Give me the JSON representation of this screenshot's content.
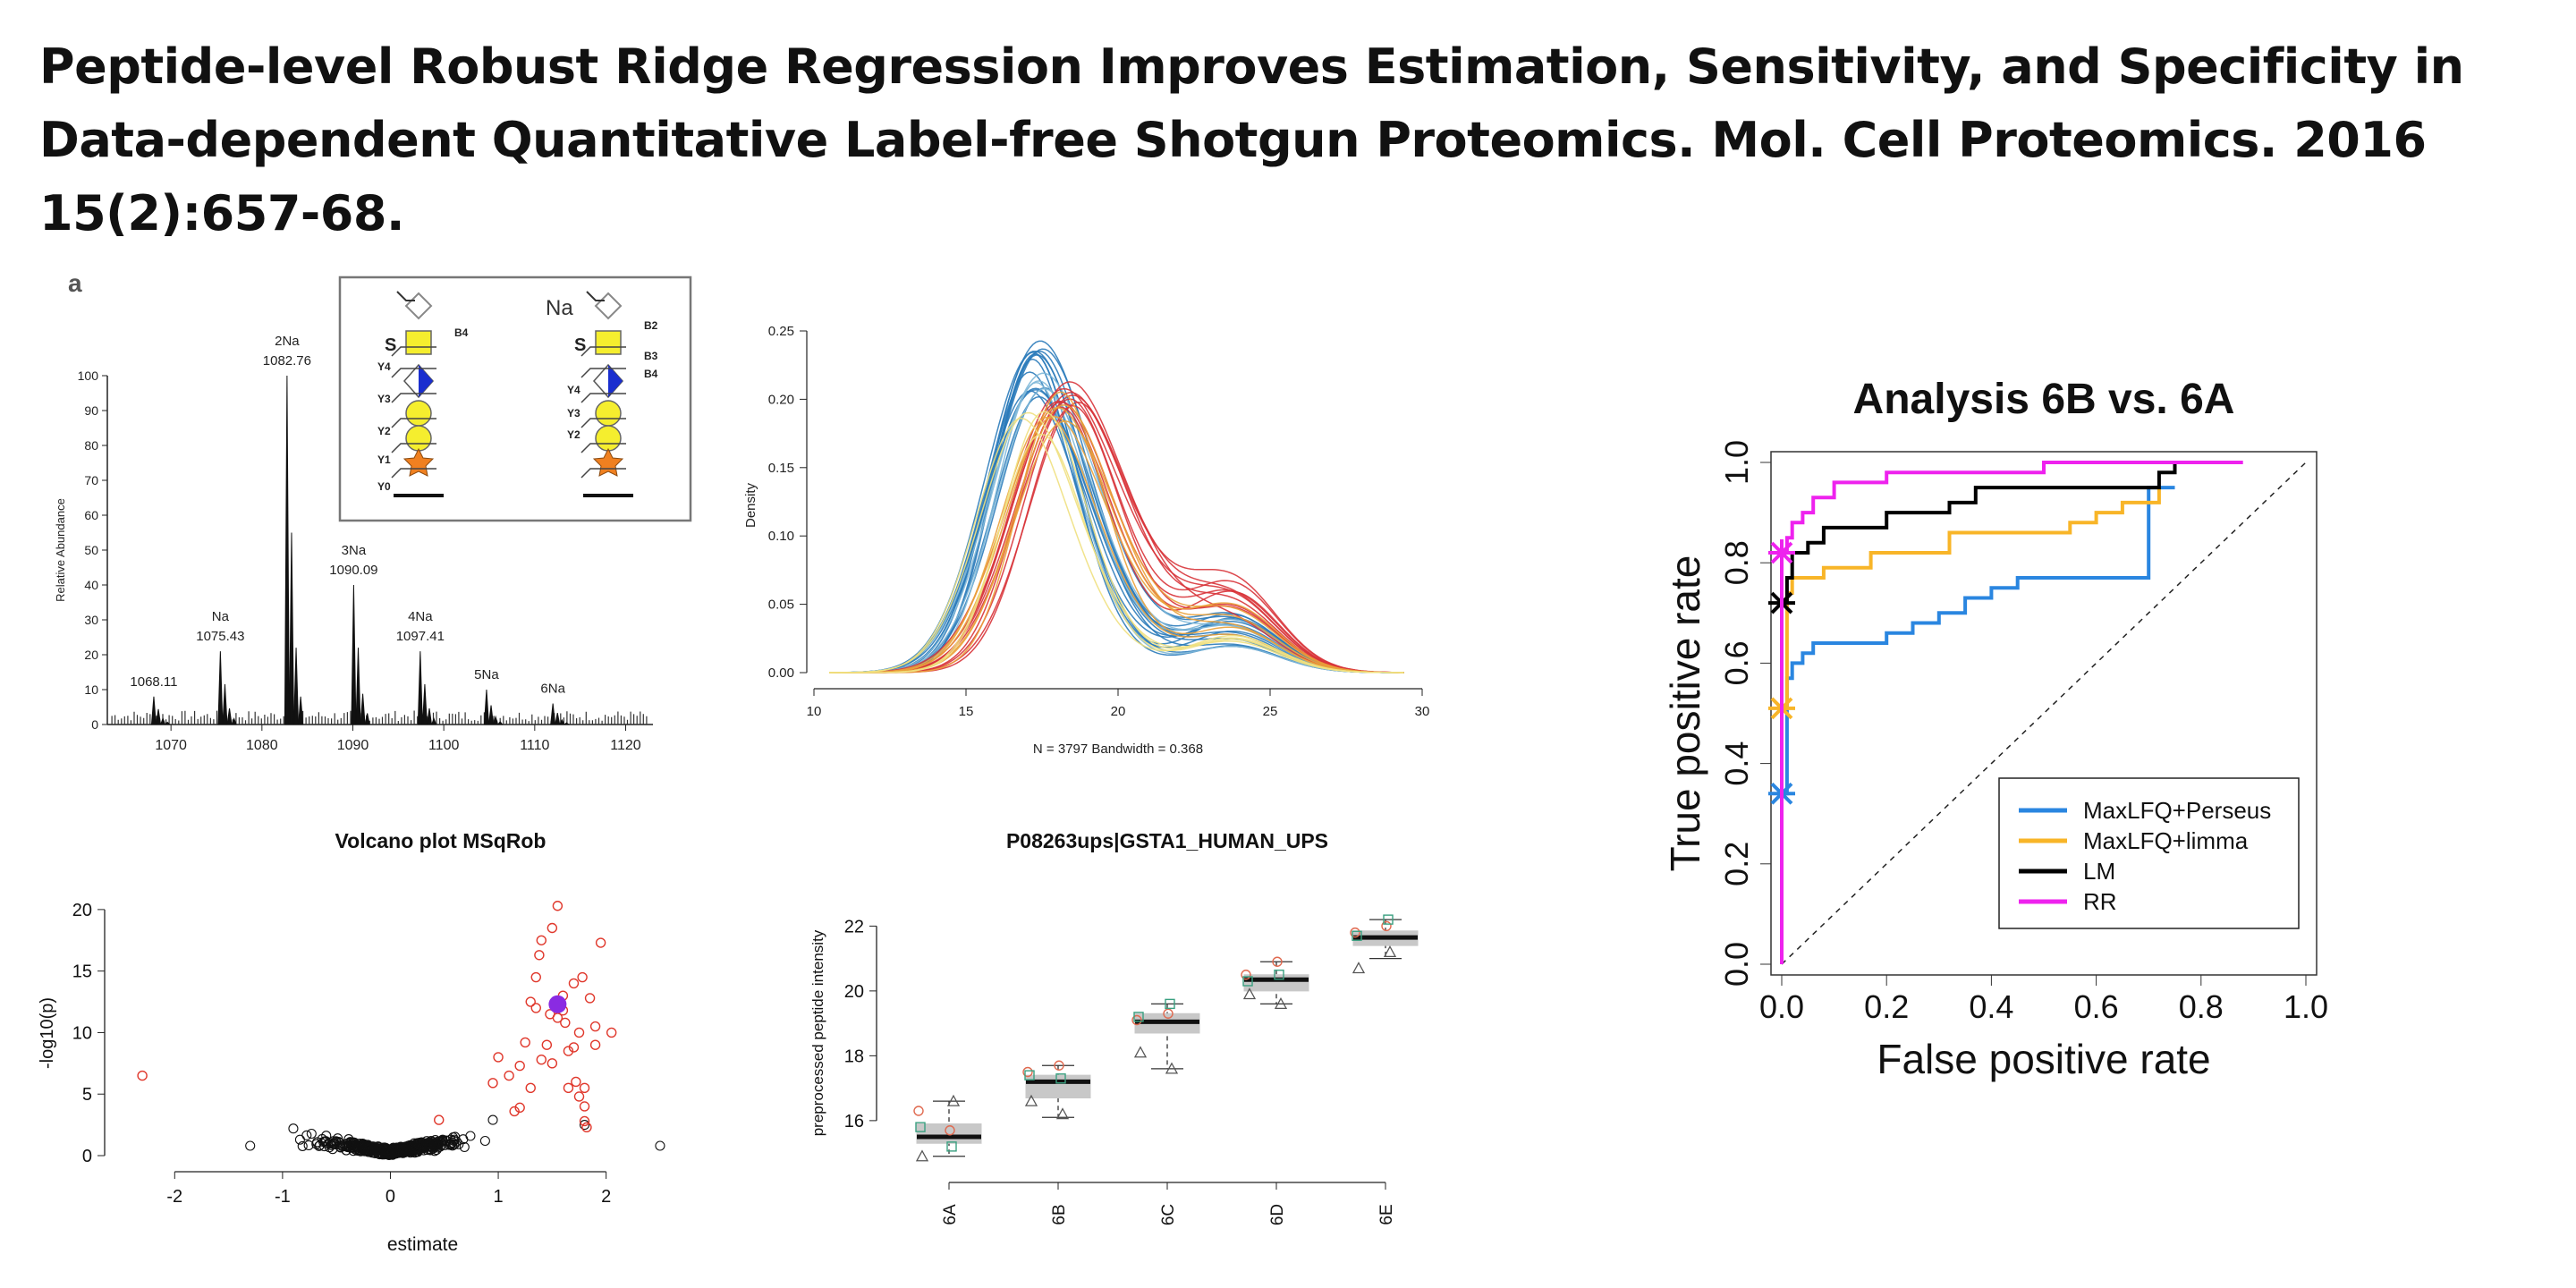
{
  "slide": {
    "title": "Peptide-level Robust Ridge Regression Improves Estimation, Sensitivity, and Specificity in Data-dependent Quantitative Label-free Shotgun Proteomics. Mol. Cell Proteomics. 2016 15(2):657-68."
  },
  "chart_data": [
    {
      "id": "mass-spectrum",
      "type": "bar",
      "panel_label": "a",
      "ylabel": "Relative Abundance",
      "xlim": [
        1063,
        1123
      ],
      "ylim": [
        0,
        100
      ],
      "xticks": [
        1070,
        1080,
        1090,
        1100,
        1110,
        1120
      ],
      "yticks": [
        0,
        10,
        20,
        30,
        40,
        50,
        60,
        70,
        80,
        90,
        100
      ],
      "peaks": [
        {
          "x": 1068.11,
          "y": 8,
          "label": "1068.11"
        },
        {
          "x": 1075.43,
          "y": 21,
          "label": "1075.43",
          "ion": "Na"
        },
        {
          "x": 1082.76,
          "y": 100,
          "label": "1082.76",
          "ion": "2Na"
        },
        {
          "x": 1090.09,
          "y": 40,
          "label": "1090.09",
          "ion": "3Na"
        },
        {
          "x": 1097.41,
          "y": 21,
          "label": "1097.41",
          "ion": "4Na"
        },
        {
          "x": 1104.7,
          "y": 10,
          "ion": "5Na"
        },
        {
          "x": 1112.0,
          "y": 6,
          "ion": "6Na"
        }
      ],
      "inset": {
        "left_ions": [
          "B4",
          "Y4",
          "Y3",
          "Y2",
          "Y1",
          "Y0"
        ],
        "right_prefix": "Na",
        "right_ions": [
          "B2",
          "B3",
          "B4",
          "Y4",
          "Y3",
          "Y2"
        ],
        "residue_letter": "S"
      }
    },
    {
      "id": "density",
      "type": "line",
      "ylabel": "Density",
      "xlim": [
        10,
        30
      ],
      "ylim": [
        0,
        0.25
      ],
      "xticks": [
        10,
        15,
        20,
        25,
        30
      ],
      "yticks": [
        0.0,
        0.05,
        0.1,
        0.15,
        0.2,
        0.25
      ],
      "xtick_labels": [
        "10",
        "15",
        "20",
        "25",
        "30"
      ],
      "ytick_labels": [
        "0.00",
        "0.05",
        "0.10",
        "0.15",
        "0.20",
        "0.25"
      ],
      "caption": "N = 3797   Bandwidth = 0.368",
      "curve_groups": [
        {
          "color": "#2b7bba",
          "count": 14,
          "mode_range": [
            17.0,
            17.6
          ],
          "peak_range": [
            0.2,
            0.245
          ],
          "sd": 1.45,
          "shoulder": 0.03
        },
        {
          "color": "#7fb8d8",
          "count": 4,
          "mode_range": [
            17.2,
            17.8
          ],
          "peak_range": [
            0.2,
            0.225
          ],
          "sd": 1.5,
          "shoulder": 0.03
        },
        {
          "color": "#d8343a",
          "count": 10,
          "mode_range": [
            18.0,
            18.9
          ],
          "peak_range": [
            0.19,
            0.217
          ],
          "sd": 1.6,
          "shoulder": 0.045
        },
        {
          "color": "#eaa13a",
          "count": 6,
          "mode_range": [
            17.6,
            18.4
          ],
          "peak_range": [
            0.18,
            0.215
          ],
          "sd": 1.5,
          "shoulder": 0.035
        },
        {
          "color": "#f0e080",
          "count": 4,
          "mode_range": [
            16.8,
            17.9
          ],
          "peak_range": [
            0.17,
            0.205
          ],
          "sd": 1.4,
          "shoulder": 0.02
        }
      ]
    },
    {
      "id": "roc",
      "type": "line",
      "title": "Analysis 6B vs. 6A",
      "xlabel": "False positive rate",
      "ylabel": "True positive rate",
      "xlim": [
        0,
        1
      ],
      "ylim": [
        0,
        1
      ],
      "xticks": [
        0,
        0.2,
        0.4,
        0.6,
        0.8,
        1.0
      ],
      "yticks": [
        0,
        0.2,
        0.4,
        0.6,
        0.8,
        1.0
      ],
      "xtick_labels": [
        "0.0",
        "0.2",
        "0.4",
        "0.6",
        "0.8",
        "1.0"
      ],
      "ytick_labels": [
        "0.0",
        "0.2",
        "0.4",
        "0.6",
        "0.8",
        "1.0"
      ],
      "legend_position": "bottom-right",
      "series": [
        {
          "name": "MaxLFQ+Perseus",
          "color": "#2a86e0",
          "x": [
            0,
            0,
            0.01,
            0.01,
            0.02,
            0.02,
            0.04,
            0.04,
            0.06,
            0.06,
            0.2,
            0.2,
            0.25,
            0.25,
            0.3,
            0.3,
            0.35,
            0.35,
            0.4,
            0.4,
            0.45,
            0.45,
            0.7,
            0.7,
            0.75
          ],
          "y": [
            0,
            0.34,
            0.34,
            0.57,
            0.57,
            0.6,
            0.6,
            0.62,
            0.62,
            0.64,
            0.64,
            0.66,
            0.66,
            0.68,
            0.68,
            0.7,
            0.7,
            0.73,
            0.73,
            0.75,
            0.75,
            0.77,
            0.77,
            0.95,
            0.95
          ],
          "marker": {
            "x": 0,
            "y": 0.34
          }
        },
        {
          "name": "MaxLFQ+limma",
          "color": "#f8b528",
          "x": [
            0,
            0,
            0.01,
            0.01,
            0.02,
            0.02,
            0.08,
            0.08,
            0.17,
            0.17,
            0.32,
            0.32,
            0.55,
            0.55,
            0.6,
            0.6,
            0.65,
            0.65,
            0.72,
            0.72
          ],
          "y": [
            0,
            0.51,
            0.51,
            0.74,
            0.74,
            0.77,
            0.77,
            0.79,
            0.79,
            0.82,
            0.82,
            0.86,
            0.86,
            0.88,
            0.88,
            0.9,
            0.9,
            0.92,
            0.92,
            0.95
          ],
          "marker": {
            "x": 0,
            "y": 0.51
          }
        },
        {
          "name": "LM",
          "color": "#000000",
          "x": [
            0,
            0,
            0.01,
            0.01,
            0.02,
            0.02,
            0.05,
            0.05,
            0.08,
            0.08,
            0.2,
            0.2,
            0.32,
            0.32,
            0.37,
            0.37,
            0.5,
            0.5,
            0.72,
            0.72,
            0.75,
            0.75
          ],
          "y": [
            0,
            0.72,
            0.72,
            0.77,
            0.77,
            0.82,
            0.82,
            0.84,
            0.84,
            0.87,
            0.87,
            0.9,
            0.9,
            0.92,
            0.92,
            0.95,
            0.95,
            0.95,
            0.95,
            0.98,
            0.98,
            1.0
          ],
          "marker": {
            "x": 0,
            "y": 0.72
          }
        },
        {
          "name": "RR",
          "color": "#ee22ee",
          "x": [
            0,
            0,
            0.01,
            0.01,
            0.02,
            0.02,
            0.04,
            0.04,
            0.06,
            0.06,
            0.1,
            0.1,
            0.2,
            0.2,
            0.5,
            0.5,
            0.88
          ],
          "y": [
            0,
            0.82,
            0.82,
            0.85,
            0.85,
            0.88,
            0.88,
            0.9,
            0.9,
            0.93,
            0.93,
            0.96,
            0.96,
            0.98,
            0.98,
            1.0,
            1.0
          ],
          "marker": {
            "x": 0,
            "y": 0.82
          }
        }
      ]
    },
    {
      "id": "volcano",
      "type": "scatter",
      "title": "Volcano plot MSqRob",
      "xlabel": "estimate",
      "ylabel": "-log10(p)",
      "xlim": [
        -2.5,
        2.6
      ],
      "ylim": [
        0,
        20.5
      ],
      "xticks": [
        -2,
        -1,
        0,
        1,
        2
      ],
      "yticks": [
        0,
        5,
        10,
        15,
        20
      ],
      "xtick_labels": [
        "-2",
        "-1",
        "0",
        "1",
        "2"
      ],
      "ytick_labels": [
        "0",
        "5",
        "10",
        "15",
        "20"
      ],
      "significant": [
        [
          -2.3,
          6.5
        ],
        [
          0.95,
          5.9
        ],
        [
          1.1,
          6.5
        ],
        [
          1.2,
          7.3
        ],
        [
          1.25,
          9.2
        ],
        [
          1.3,
          12.5
        ],
        [
          1.35,
          14.5
        ],
        [
          1.38,
          16.3
        ],
        [
          1.4,
          17.5
        ],
        [
          1.45,
          9.0
        ],
        [
          1.48,
          11.5
        ],
        [
          1.5,
          18.5
        ],
        [
          1.55,
          20.3
        ],
        [
          1.6,
          13.0
        ],
        [
          1.62,
          10.8
        ],
        [
          1.65,
          8.5
        ],
        [
          1.7,
          14.0
        ],
        [
          1.72,
          6.0
        ],
        [
          1.75,
          10.0
        ],
        [
          1.78,
          14.5
        ],
        [
          1.8,
          5.5
        ],
        [
          1.8,
          4.0
        ],
        [
          1.85,
          12.8
        ],
        [
          1.9,
          9.0
        ],
        [
          1.95,
          17.3
        ],
        [
          2.05,
          10.0
        ],
        [
          1.2,
          3.9
        ],
        [
          1.15,
          3.6
        ],
        [
          1.3,
          5.5
        ],
        [
          1.4,
          7.8
        ],
        [
          1.55,
          11.2
        ],
        [
          1.65,
          5.5
        ],
        [
          1.7,
          8.8
        ],
        [
          1.9,
          10.5
        ],
        [
          0.45,
          2.9
        ],
        [
          1.35,
          12.0
        ],
        [
          1.6,
          11.8
        ],
        [
          1.75,
          4.8
        ],
        [
          1.0,
          8.0
        ],
        [
          1.5,
          7.5
        ],
        [
          1.82,
          2.3
        ],
        [
          1.8,
          2.8
        ]
      ],
      "highlight": {
        "x": 1.55,
        "y": 12.3,
        "color": "#8a2be2"
      },
      "nonsignificant_summary": {
        "count": 420,
        "x_range": [
          -1.3,
          1.3
        ],
        "max_y": 2.8
      },
      "extra_black_points": [
        [
          2.5,
          0.8
        ],
        [
          -1.3,
          0.8
        ],
        [
          -0.9,
          2.2
        ],
        [
          0.95,
          2.9
        ],
        [
          1.8,
          2.5
        ]
      ]
    },
    {
      "id": "boxplot",
      "type": "box",
      "title": "P08263ups|GSTA1_HUMAN_UPS",
      "ylabel": "preprocessed peptide intensity",
      "ylim": [
        14.7,
        22.7
      ],
      "yticks": [
        16,
        18,
        20,
        22
      ],
      "ytick_labels": [
        "16",
        "18",
        "20",
        "22"
      ],
      "categories": [
        "6A",
        "6B",
        "6C",
        "6D",
        "6E"
      ],
      "boxes": [
        {
          "min": 14.9,
          "q1": 15.3,
          "median": 15.5,
          "q3": 15.9,
          "max": 16.6
        },
        {
          "min": 16.1,
          "q1": 16.7,
          "median": 17.2,
          "q3": 17.4,
          "max": 17.7
        },
        {
          "min": 17.6,
          "q1": 18.7,
          "median": 19.05,
          "q3": 19.3,
          "max": 19.6
        },
        {
          "min": 19.6,
          "q1": 20.0,
          "median": 20.35,
          "q3": 20.5,
          "max": 20.9
        },
        {
          "min": 21.0,
          "q1": 21.4,
          "median": 21.65,
          "q3": 21.85,
          "max": 22.2
        }
      ],
      "points": [
        {
          "cat": 0,
          "y": 15.7,
          "shape": "circle",
          "color": "#e06a50"
        },
        {
          "cat": 0,
          "y": 16.3,
          "shape": "circle",
          "color": "#e06a50"
        },
        {
          "cat": 0,
          "y": 15.2,
          "shape": "square",
          "color": "#3aa080"
        },
        {
          "cat": 0,
          "y": 15.8,
          "shape": "square",
          "color": "#3aa080"
        },
        {
          "cat": 0,
          "y": 16.6,
          "shape": "triangle",
          "color": "#555"
        },
        {
          "cat": 0,
          "y": 14.9,
          "shape": "triangle",
          "color": "#555"
        },
        {
          "cat": 1,
          "y": 17.7,
          "shape": "circle",
          "color": "#e06a50"
        },
        {
          "cat": 1,
          "y": 17.5,
          "shape": "circle",
          "color": "#e06a50"
        },
        {
          "cat": 1,
          "y": 17.3,
          "shape": "square",
          "color": "#3aa080"
        },
        {
          "cat": 1,
          "y": 17.4,
          "shape": "square",
          "color": "#3aa080"
        },
        {
          "cat": 1,
          "y": 16.2,
          "shape": "triangle",
          "color": "#555"
        },
        {
          "cat": 1,
          "y": 16.6,
          "shape": "triangle",
          "color": "#555"
        },
        {
          "cat": 2,
          "y": 19.3,
          "shape": "circle",
          "color": "#e06a50"
        },
        {
          "cat": 2,
          "y": 19.1,
          "shape": "circle",
          "color": "#e06a50"
        },
        {
          "cat": 2,
          "y": 19.6,
          "shape": "square",
          "color": "#3aa080"
        },
        {
          "cat": 2,
          "y": 19.2,
          "shape": "square",
          "color": "#3aa080"
        },
        {
          "cat": 2,
          "y": 17.6,
          "shape": "triangle",
          "color": "#555"
        },
        {
          "cat": 2,
          "y": 18.1,
          "shape": "triangle",
          "color": "#555"
        },
        {
          "cat": 3,
          "y": 20.9,
          "shape": "circle",
          "color": "#e06a50"
        },
        {
          "cat": 3,
          "y": 20.5,
          "shape": "circle",
          "color": "#e06a50"
        },
        {
          "cat": 3,
          "y": 20.5,
          "shape": "square",
          "color": "#3aa080"
        },
        {
          "cat": 3,
          "y": 20.3,
          "shape": "square",
          "color": "#3aa080"
        },
        {
          "cat": 3,
          "y": 19.6,
          "shape": "triangle",
          "color": "#555"
        },
        {
          "cat": 3,
          "y": 19.9,
          "shape": "triangle",
          "color": "#555"
        },
        {
          "cat": 4,
          "y": 22.0,
          "shape": "circle",
          "color": "#e06a50"
        },
        {
          "cat": 4,
          "y": 21.8,
          "shape": "circle",
          "color": "#e06a50"
        },
        {
          "cat": 4,
          "y": 22.2,
          "shape": "square",
          "color": "#3aa080"
        },
        {
          "cat": 4,
          "y": 21.7,
          "shape": "square",
          "color": "#3aa080"
        },
        {
          "cat": 4,
          "y": 21.2,
          "shape": "triangle",
          "color": "#555"
        },
        {
          "cat": 4,
          "y": 20.7,
          "shape": "triangle",
          "color": "#555"
        }
      ]
    }
  ]
}
